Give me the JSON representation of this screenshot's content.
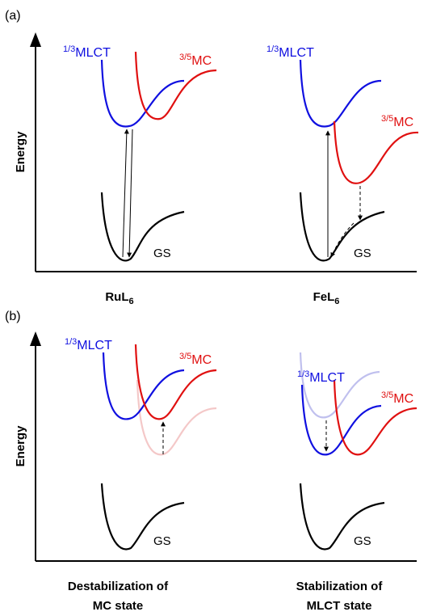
{
  "panels": [
    {
      "label": "(a)",
      "axis_label": "Energy",
      "left": {
        "mlct_sup": "1/3",
        "mlct_base": "MLCT",
        "mc_sup": "3/5",
        "mc_base": "MC",
        "gs": "GS",
        "caption_base": "RuL",
        "caption_sub": "6"
      },
      "right": {
        "mlct_sup": "1/3",
        "mlct_base": "MLCT",
        "mc_sup": "3/5",
        "mc_base": "MC",
        "gs": "GS",
        "caption_base": "FeL",
        "caption_sub": "6"
      }
    },
    {
      "label": "(b)",
      "axis_label": "Energy",
      "left": {
        "mlct_sup": "1/3",
        "mlct_base": "MLCT",
        "mc_sup": "3/5",
        "mc_base": "MC",
        "gs": "GS",
        "caption_line1": "Destabilization of",
        "caption_line2": "MC state"
      },
      "right": {
        "mlct_sup": "1/3",
        "mlct_base": "MLCT",
        "mc_sup": "3/5",
        "mc_base": "MC",
        "gs": "GS",
        "caption_line1": "Stabilization of",
        "caption_line2": "MLCT state"
      }
    }
  ],
  "colors": {
    "mlct": "#1010e0",
    "mc": "#e01010",
    "gs": "#000000",
    "mlct_faded": "#c0c0ee",
    "mc_faded": "#f4c8c8"
  }
}
